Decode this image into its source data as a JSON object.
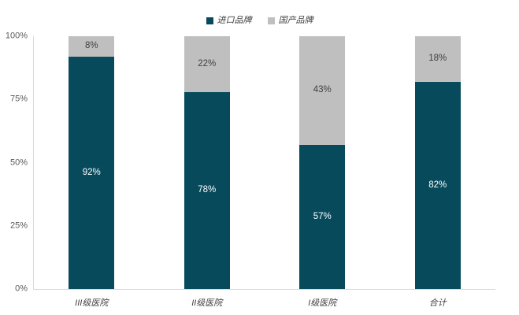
{
  "chart_data": {
    "type": "bar",
    "stacked": true,
    "orientation": "vertical",
    "categories": [
      "III级医院",
      "II级医院",
      "I级医院",
      "合计"
    ],
    "series": [
      {
        "name": "进口品牌",
        "color": "#074a5c",
        "label_color": "#ffffff",
        "values": [
          92,
          78,
          57,
          82
        ]
      },
      {
        "name": "国产品牌",
        "color": "#bfbfbf",
        "label_color": "#404040",
        "values": [
          8,
          22,
          43,
          18
        ]
      }
    ],
    "data_labels": {
      "进口品牌": [
        "92%",
        "78%",
        "57%",
        "82%"
      ],
      "国产品牌": [
        "8%",
        "22%",
        "43%",
        "18%"
      ]
    },
    "title": "",
    "xlabel": "",
    "ylabel": "",
    "ylim": [
      0,
      100
    ],
    "yticks": [
      "0%",
      "25%",
      "50%",
      "75%",
      "100%"
    ],
    "legend_position": "top-center",
    "grid": false
  },
  "colors": {
    "imported_brand": "#074a5c",
    "domestic_brand": "#bfbfbf",
    "axis_line": "#d9d9d9",
    "tick_text": "#595959",
    "label_text": "#404040",
    "background": "#ffffff"
  }
}
